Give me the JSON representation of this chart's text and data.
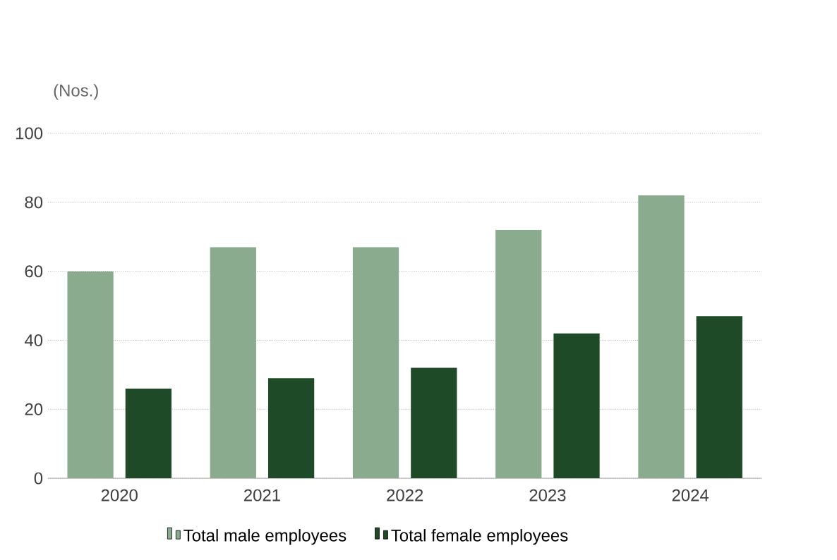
{
  "chart_data": {
    "type": "bar",
    "ylabel": "(Nos.)",
    "categories": [
      "2020",
      "2021",
      "2022",
      "2023",
      "2024"
    ],
    "series": [
      {
        "name": "Total male employees",
        "color": "#8aab8e",
        "values": [
          60,
          67,
          67,
          72,
          82
        ]
      },
      {
        "name": "Total female employees",
        "color": "#1f4a27",
        "values": [
          26,
          29,
          32,
          42,
          47
        ]
      }
    ],
    "ylim": [
      0,
      100
    ],
    "yticks": [
      0,
      20,
      40,
      60,
      80,
      100
    ],
    "grid": "y",
    "legend": "bottom"
  }
}
